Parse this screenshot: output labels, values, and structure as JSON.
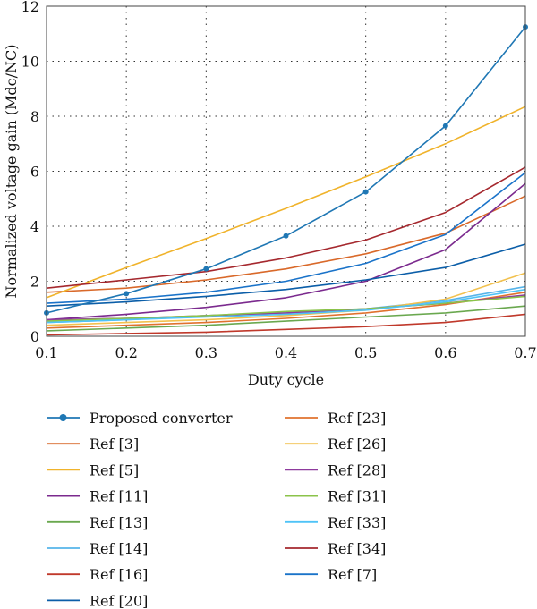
{
  "chart_data": {
    "type": "line",
    "xlabel": "Duty cycle",
    "ylabel": "Normalized voltage gain (Mdc/NC)",
    "xlim": [
      0.1,
      0.7
    ],
    "ylim": [
      0,
      12
    ],
    "xticks": [
      "0.1",
      "0.2",
      "0.3",
      "0.4",
      "0.5",
      "0.6",
      "0.7"
    ],
    "yticks": [
      "0",
      "2",
      "4",
      "6",
      "8",
      "10",
      "12"
    ],
    "grid": "dotted",
    "legend_position": "below",
    "x": [
      0.1,
      0.2,
      0.3,
      0.4,
      0.5,
      0.6,
      0.7
    ],
    "series": [
      {
        "name": "Proposed converter",
        "color": "#1f77b4",
        "marker": "circle",
        "values": [
          0.85,
          1.55,
          2.45,
          3.65,
          5.25,
          7.65,
          11.25
        ]
      },
      {
        "name": "Ref [3]",
        "color": "#d9692a",
        "values": [
          1.6,
          1.75,
          2.05,
          2.45,
          3.0,
          3.75,
          5.1
        ]
      },
      {
        "name": "Ref [5]",
        "color": "#f0b32b",
        "values": [
          1.4,
          2.5,
          3.55,
          4.65,
          5.8,
          7.0,
          8.35
        ]
      },
      {
        "name": "Ref [11]",
        "color": "#7b2a8e",
        "values": [
          0.6,
          0.8,
          1.05,
          1.4,
          2.0,
          3.15,
          5.55
        ]
      },
      {
        "name": "Ref [13]",
        "color": "#6aa84f",
        "values": [
          0.2,
          0.3,
          0.4,
          0.55,
          0.7,
          0.85,
          1.1
        ]
      },
      {
        "name": "Ref [14]",
        "color": "#56b4e9",
        "values": [
          0.5,
          0.6,
          0.75,
          0.85,
          1.0,
          1.3,
          1.8
        ]
      },
      {
        "name": "Ref [16]",
        "color": "#c0392b",
        "values": [
          0.05,
          0.1,
          0.15,
          0.25,
          0.35,
          0.5,
          0.8
        ]
      },
      {
        "name": "Ref [20]",
        "color": "#0b5ea8",
        "values": [
          1.1,
          1.25,
          1.45,
          1.7,
          2.05,
          2.5,
          3.35
        ]
      },
      {
        "name": "Ref [23]",
        "color": "#e0722e",
        "values": [
          0.3,
          0.4,
          0.5,
          0.65,
          0.85,
          1.15,
          1.6
        ]
      },
      {
        "name": "Ref [26]",
        "color": "#f2c14e",
        "values": [
          0.4,
          0.5,
          0.6,
          0.75,
          0.95,
          1.35,
          2.3
        ]
      },
      {
        "name": "Ref [28]",
        "color": "#8e3a9d",
        "values": [
          0.6,
          0.65,
          0.75,
          0.85,
          1.0,
          1.2,
          1.5
        ]
      },
      {
        "name": "Ref [31]",
        "color": "#8bc34a",
        "values": [
          0.55,
          0.65,
          0.75,
          0.9,
          1.0,
          1.2,
          1.45
        ]
      },
      {
        "name": "Ref [33]",
        "color": "#4fc3f7",
        "values": [
          0.5,
          0.6,
          0.7,
          0.8,
          0.95,
          1.25,
          1.7
        ]
      },
      {
        "name": "Ref [34]",
        "color": "#a5282e",
        "values": [
          1.75,
          2.05,
          2.35,
          2.85,
          3.5,
          4.5,
          6.15
        ]
      },
      {
        "name": "Ref [7]",
        "color": "#1a73c9",
        "values": [
          1.2,
          1.35,
          1.6,
          2.0,
          2.65,
          3.7,
          5.95
        ]
      }
    ]
  }
}
